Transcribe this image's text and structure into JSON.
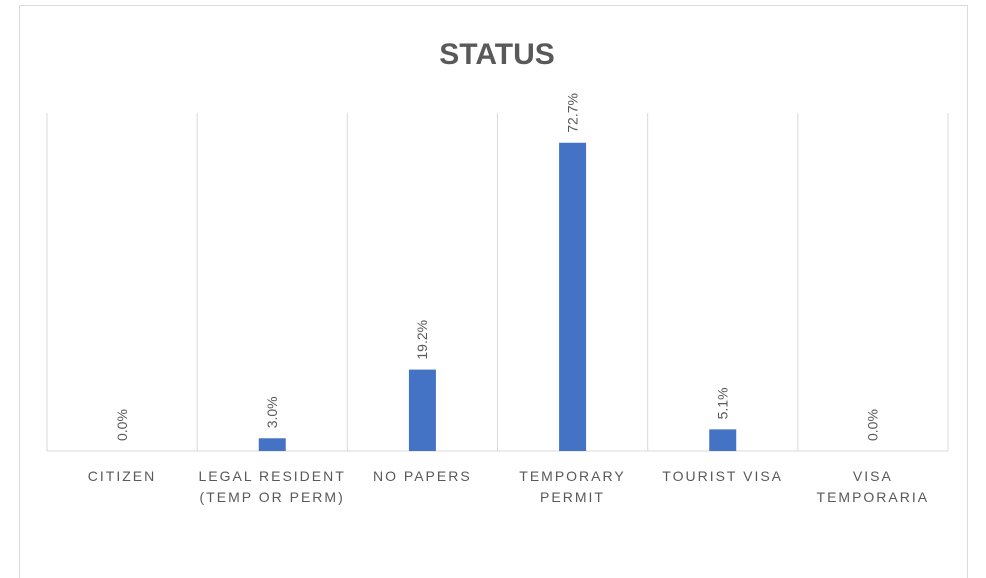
{
  "chart_data": {
    "type": "bar",
    "title": "STATUS",
    "categories": [
      "CITIZEN",
      "LEGAL RESIDENT (TEMP OR PERM)",
      "NO PAPERS",
      "TEMPORARY PERMIT",
      "TOURIST VISA",
      "VISA TEMPORARIA"
    ],
    "values": [
      0,
      3,
      19.2,
      72.7,
      5.1,
      0
    ],
    "value_labels": [
      "0.0%",
      "3.0%",
      "19.2%",
      "72.7%",
      "5.1%",
      "0.0%"
    ],
    "color": "#4472c4"
  }
}
